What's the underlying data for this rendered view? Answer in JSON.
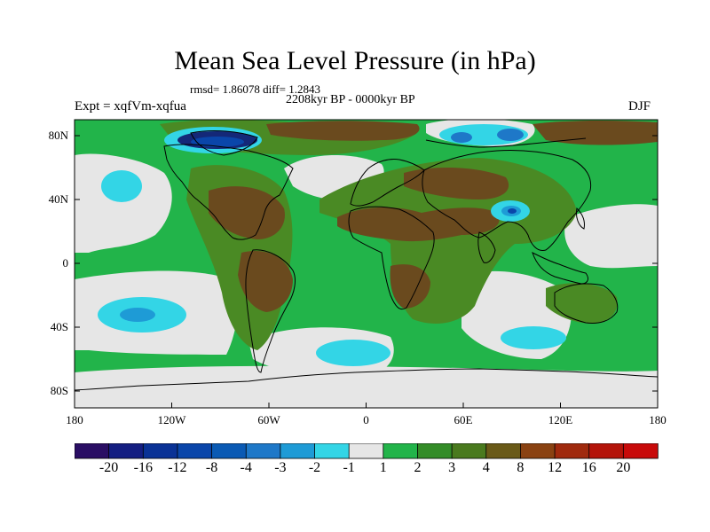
{
  "header": {
    "title": "Mean Sea Level Pressure (in hPa)",
    "stats": "rmsd= 1.86078 diff= 1.2843",
    "period": "2208kyr BP - 0000kyr BP",
    "experiment": "Expt = xqfVm-xqfua",
    "season": "DJF"
  },
  "map": {
    "lat_labels": [
      "80N",
      "40N",
      "0",
      "40S",
      "80S"
    ],
    "lon_labels": [
      "180",
      "120W",
      "60W",
      "0",
      "60E",
      "120E",
      "180"
    ],
    "colors": {
      "neutral": "#e6e6e6",
      "light_green": "#22b44a",
      "mid_green": "#4a8a24",
      "olive": "#5e6a1a",
      "brown": "#6a4a1e",
      "cyan": "#33d5e6",
      "light_blue": "#1e9bd6",
      "blue": "#0a5ab4",
      "dark_blue": "#142878"
    }
  },
  "colorbar": {
    "labels": [
      "-20",
      "-16",
      "-12",
      "-8",
      "-4",
      "-3",
      "-2",
      "-1",
      "1",
      "2",
      "3",
      "4",
      "8",
      "12",
      "16",
      "20"
    ],
    "colors": [
      "#2a0e64",
      "#141e82",
      "#0a3296",
      "#0a46aa",
      "#0a5ab4",
      "#1e78c8",
      "#1e9bd6",
      "#33d5e6",
      "#e6e6e6",
      "#22b44a",
      "#338c28",
      "#4a7a1e",
      "#6a5a18",
      "#8a4212",
      "#a02a0e",
      "#b4140a",
      "#c80a0a"
    ]
  }
}
